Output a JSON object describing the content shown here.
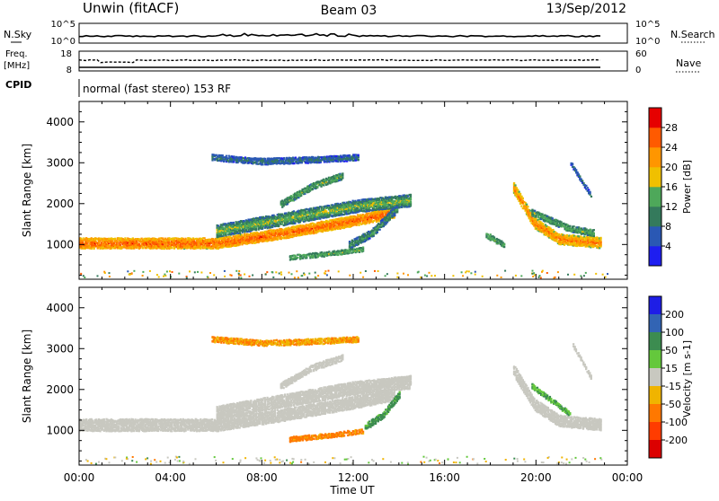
{
  "header": {
    "station": "Unwin (fitACF)",
    "beam": "Beam 03",
    "date": "13/Sep/2012"
  },
  "noise_panel": {
    "left_label": "N.Sky",
    "right_label": "N.Search",
    "left_ticks": [
      "10^5",
      "10^0"
    ],
    "right_ticks": [
      "10^5",
      "10^0"
    ]
  },
  "freq_panel": {
    "left_label_1": "Freq.",
    "left_label_2": "[MHz]",
    "left_ticks": [
      "18",
      "8"
    ],
    "right_ticks": [
      "60",
      "0"
    ],
    "right_label": "Nave"
  },
  "cpid": {
    "label": "CPID",
    "mode": "normal (fast stereo) 153 RF"
  },
  "chart_data": [
    {
      "type": "heatmap",
      "name": "power-panel",
      "ylabel": "Slant Range [km]",
      "xlim": [
        0,
        24
      ],
      "ylim": [
        150,
        4500
      ],
      "y_ticks": [
        1000,
        2000,
        3000,
        4000
      ],
      "colorbar_label": "Power [dB]",
      "colorbar_range": [
        0,
        32
      ],
      "colorbar_ticks": [
        4,
        8,
        12,
        16,
        20,
        24,
        28
      ],
      "colorbar_colors": [
        "#1e1ef0",
        "#2a58b4",
        "#347a5c",
        "#4ea85a",
        "#f0c000",
        "#ff9600",
        "#ff5a00",
        "#e60000"
      ],
      "echo_bands": [
        {
          "t": [
            0.0,
            6.0,
            9.0,
            12.0,
            13.8
          ],
          "r": [
            1050,
            1050,
            1300,
            1600,
            1800
          ],
          "w": 260,
          "level": 26
        },
        {
          "t": [
            6.0,
            9.5,
            12.0,
            14.5
          ],
          "r": [
            1350,
            1700,
            1950,
            2100
          ],
          "w": 300,
          "level": 16
        },
        {
          "t": [
            8.8,
            10.2,
            11.5
          ],
          "r": [
            2000,
            2450,
            2700
          ],
          "w": 160,
          "level": 14
        },
        {
          "t": [
            5.8,
            8.0,
            10.5,
            12.2
          ],
          "r": [
            3150,
            3050,
            3100,
            3150
          ],
          "w": 150,
          "level": 9
        },
        {
          "t": [
            11.8,
            12.8,
            13.9
          ],
          "r": [
            1000,
            1300,
            1900
          ],
          "w": 200,
          "level": 12
        },
        {
          "t": [
            9.2,
            11.0,
            12.4
          ],
          "r": [
            700,
            800,
            900
          ],
          "w": 110,
          "level": 14
        },
        {
          "t": [
            19.0,
            19.9,
            21.0,
            23.0
          ],
          "r": [
            2400,
            1550,
            1150,
            1050
          ],
          "w": 260,
          "level": 24
        },
        {
          "t": [
            19.8,
            21.5,
            22.5
          ],
          "r": [
            1800,
            1400,
            1300
          ],
          "w": 160,
          "level": 14
        },
        {
          "t": [
            21.5,
            22.4
          ],
          "r": [
            3000,
            2200
          ],
          "w": 100,
          "level": 8
        },
        {
          "t": [
            17.8,
            18.6
          ],
          "r": [
            1250,
            1000
          ],
          "w": 140,
          "level": 14
        }
      ]
    },
    {
      "type": "heatmap",
      "name": "velocity-panel",
      "ylabel": "Slant Range [km]",
      "xlabel": "Time UT",
      "xlim": [
        0,
        24
      ],
      "ylim": [
        150,
        4500
      ],
      "x_ticks": [
        "00:00",
        "04:00",
        "08:00",
        "12:00",
        "16:00",
        "20:00",
        "00:00"
      ],
      "y_ticks": [
        1000,
        2000,
        3000,
        4000
      ],
      "colorbar_label": "Velocity [m s-1]",
      "colorbar_tick_labels": [
        "200",
        "100",
        "50",
        "15",
        "-15",
        "-50",
        "-100",
        "-200"
      ],
      "colorbar_colors": [
        "#1e1ee6",
        "#3264b4",
        "#3c8c50",
        "#64c83c",
        "#c8c8c0",
        "#f0b400",
        "#ff7800",
        "#ff3c00",
        "#dc0000"
      ],
      "echo_bands": [
        {
          "t": [
            0.0,
            6.0,
            9.0,
            12.0,
            13.8
          ],
          "r": [
            1150,
            1150,
            1400,
            1700,
            1900
          ],
          "w": 300,
          "v": 0
        },
        {
          "t": [
            6.0,
            9.5,
            12.0,
            14.5
          ],
          "r": [
            1450,
            1800,
            2050,
            2200
          ],
          "w": 320,
          "v": 0
        },
        {
          "t": [
            8.8,
            10.2,
            11.5
          ],
          "r": [
            2100,
            2550,
            2800
          ],
          "w": 160,
          "v": 0
        },
        {
          "t": [
            5.8,
            8.0,
            10.5,
            12.2
          ],
          "r": [
            3250,
            3150,
            3200,
            3250
          ],
          "w": 140,
          "v": -30
        },
        {
          "t": [
            9.2,
            11.0,
            12.4
          ],
          "r": [
            800,
            900,
            1000
          ],
          "w": 120,
          "v": -40
        },
        {
          "t": [
            12.5,
            13.3,
            14.0
          ],
          "r": [
            1100,
            1400,
            1900
          ],
          "w": 160,
          "v": 40
        },
        {
          "t": [
            19.0,
            19.9,
            21.0,
            23.0
          ],
          "r": [
            2500,
            1650,
            1250,
            1150
          ],
          "w": 280,
          "v": 0
        },
        {
          "t": [
            19.8,
            21.5
          ],
          "r": [
            2100,
            1400
          ],
          "w": 120,
          "v": 30
        },
        {
          "t": [
            21.6,
            22.4
          ],
          "r": [
            3100,
            2300
          ],
          "w": 90,
          "v": 0
        }
      ]
    }
  ]
}
